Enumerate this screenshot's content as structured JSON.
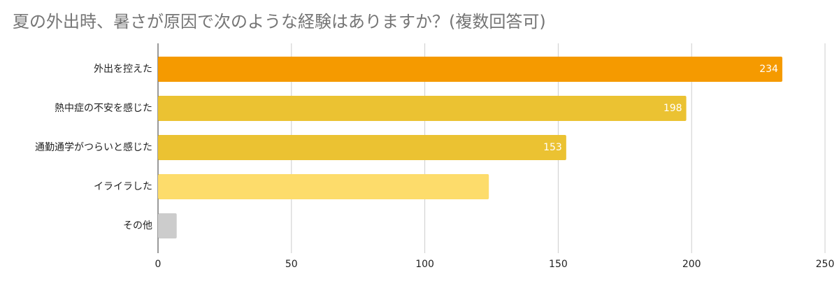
{
  "chart_data": {
    "type": "hbar",
    "title": "夏の外出時、暑さが原因で次のような経験はありますか？(複数回答可)",
    "categories": [
      "外出を控えた",
      "熱中症の不安を感じた",
      "通勤通学がつらいと感じた",
      "イライラした",
      "その他"
    ],
    "values": [
      234,
      198,
      153,
      124,
      7
    ],
    "value_labels": [
      "234",
      "198",
      "153",
      null,
      null
    ],
    "colors": [
      "#f59a00",
      "#ebc232",
      "#ebc232",
      "#fddc6b",
      "#cccccc"
    ],
    "xlim": [
      0,
      250
    ],
    "xticks": [
      0,
      50,
      100,
      150,
      200,
      250
    ],
    "grid": true
  }
}
